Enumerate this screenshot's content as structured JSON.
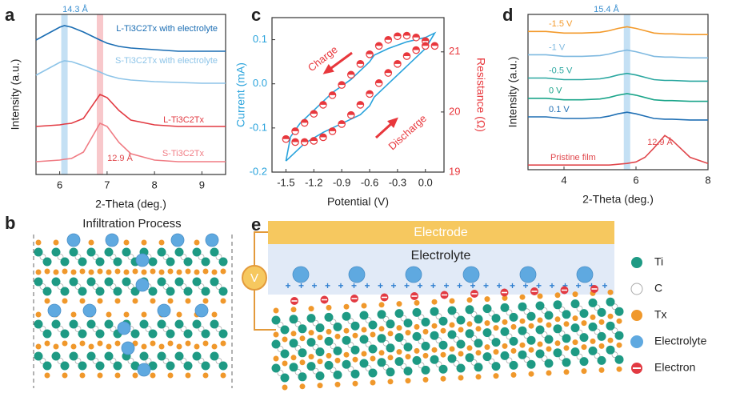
{
  "chart_data": [
    {
      "type": "line",
      "xlabel": "2-Theta (deg.)",
      "ylabel": "Intensity (a.u.)",
      "xlim": [
        5.5,
        9.5
      ],
      "xticks": [
        6,
        7,
        8,
        9
      ],
      "ylim": [
        0,
        100
      ],
      "x": [
        5.5,
        5.75,
        6.0,
        6.1,
        6.25,
        6.5,
        6.85,
        7.0,
        7.25,
        7.5,
        8,
        8.5,
        9,
        9.5
      ],
      "series": [
        {
          "name": "L-Ti3C2Tx with electrolyte",
          "color": "#1a6db3",
          "values": [
            84,
            88,
            92,
            93,
            92,
            89,
            84,
            82,
            80,
            79,
            78,
            77,
            77,
            77
          ]
        },
        {
          "name": "S-Ti3C2Tx with electrolyte",
          "color": "#8dc4e8",
          "values": [
            62,
            66,
            70,
            71,
            70.5,
            68,
            64,
            62,
            60,
            59,
            58,
            57.5,
            57,
            57
          ]
        },
        {
          "name": "L-Ti3C2Tx",
          "color": "#e23a42",
          "values": [
            30,
            30.5,
            31,
            31.5,
            32,
            35,
            50,
            48,
            40,
            34,
            31,
            30,
            30,
            30
          ]
        },
        {
          "name": "S-Ti3C2Tx",
          "color": "#f07c84",
          "values": [
            8,
            8.5,
            9,
            9.5,
            10,
            14,
            32,
            30,
            20,
            13,
            9,
            8,
            8,
            8
          ]
        }
      ],
      "bands": [
        {
          "x": 6.1,
          "color": "#c4e0f4"
        },
        {
          "x": 6.85,
          "color": "#f8c8cb"
        }
      ],
      "annotations": [
        {
          "text": "14.3 Å",
          "color": "#3a8fd0"
        },
        {
          "text": "12.9 Å",
          "color": "#e0474c"
        }
      ]
    },
    {
      "type": "loop",
      "xlabel": "Potential (V)",
      "ylabel": "Current (mA)",
      "y2label": "Resistance (Ω)",
      "xlim": [
        -1.65,
        0.2
      ],
      "xticks": [
        -1.5,
        -1.2,
        -0.9,
        -0.6,
        -0.3,
        {
          "value": 0,
          "label": "0.0"
        }
      ],
      "ylim": [
        -0.2,
        0.15
      ],
      "yticks": [
        -0.2,
        -0.1,
        {
          "value": 0,
          "label": "0.0"
        },
        0.1
      ],
      "y2lim": [
        19,
        21.57
      ],
      "y2ticks": [
        19,
        20,
        21
      ],
      "series": [
        {
          "color": "#29a3dc",
          "axis": "y",
          "x": [
            -1.5,
            -1.45,
            -1.35,
            -1.2,
            -1.0,
            -0.8,
            -0.65,
            -0.6,
            -0.55,
            -0.4,
            -0.2,
            0,
            0.1,
            0.0,
            -0.2,
            -0.4,
            -0.55,
            -0.6,
            -0.7,
            -0.9,
            -1.1,
            -1.3,
            -1.5
          ],
          "values": [
            -0.175,
            -0.12,
            -0.09,
            -0.06,
            -0.02,
            0.01,
            0.04,
            0.05,
            0.065,
            0.08,
            0.095,
            0.105,
            0.115,
            0.08,
            0.04,
            0.0,
            -0.03,
            -0.05,
            -0.07,
            -0.09,
            -0.11,
            -0.135,
            -0.175
          ]
        },
        {
          "color": "#e8373c",
          "axis": "y2",
          "marker": true,
          "x": [
            -1.5,
            -1.4,
            -1.3,
            -1.2,
            -1.1,
            -1.0,
            -0.9,
            -0.8,
            -0.7,
            -0.6,
            -0.5,
            -0.4,
            -0.3,
            -0.2,
            -0.1,
            0.0,
            0.1,
            0.0,
            -0.1,
            -0.2,
            -0.3,
            -0.4,
            -0.5,
            -0.6,
            -0.7,
            -0.8,
            -0.9,
            -1.0,
            -1.1,
            -1.2,
            -1.3,
            -1.4
          ],
          "values": [
            19.55,
            19.68,
            19.82,
            19.97,
            20.12,
            20.28,
            20.45,
            20.62,
            20.8,
            20.96,
            21.1,
            21.2,
            21.26,
            21.27,
            21.24,
            21.18,
            21.1,
            21.1,
            21.03,
            20.93,
            20.8,
            20.65,
            20.48,
            20.3,
            20.12,
            19.95,
            19.8,
            19.68,
            19.58,
            19.52,
            19.5,
            19.5
          ]
        }
      ],
      "annotations": [
        {
          "text": "Charge",
          "color": "#e8373c"
        },
        {
          "text": "Discharge",
          "color": "#e8373c"
        }
      ]
    },
    {
      "type": "line",
      "xlabel": "2-Theta (deg.)",
      "ylabel": "Intensity (a.u.)",
      "xlim": [
        3,
        8
      ],
      "xticks": [
        4,
        6,
        8
      ],
      "ylim": [
        0,
        100
      ],
      "x": [
        3,
        3.5,
        4,
        4.5,
        5,
        5.25,
        5.5,
        5.75,
        6,
        6.25,
        6.5,
        6.8,
        7,
        7.5,
        8
      ],
      "series": [
        {
          "name": "-1.5 V",
          "color": "#f39a2b",
          "values": [
            89,
            89,
            88,
            88,
            88.5,
            89.5,
            91,
            92,
            91,
            89.5,
            88,
            87.5,
            87.5,
            87,
            87
          ]
        },
        {
          "name": "-1 V",
          "color": "#7fb9e0",
          "values": [
            74,
            74,
            73,
            73,
            73.5,
            74.5,
            76,
            77,
            76,
            74.5,
            73,
            72.5,
            72.5,
            72,
            72
          ]
        },
        {
          "name": "-0.5 V",
          "color": "#2aa7a0",
          "values": [
            59,
            59,
            58,
            58,
            58.5,
            59.5,
            61,
            62,
            61,
            59.5,
            58,
            57.5,
            57.5,
            57,
            57
          ]
        },
        {
          "name": "0 V",
          "color": "#1ba58a",
          "values": [
            46,
            46,
            45,
            45,
            45.5,
            46.5,
            48,
            49,
            48,
            46.5,
            45,
            44.5,
            44.5,
            44,
            44
          ]
        },
        {
          "name": "0.1 V",
          "color": "#1f6fb4",
          "values": [
            34,
            34,
            33,
            33,
            33.5,
            34.5,
            36,
            37,
            36,
            34.5,
            33,
            32.5,
            32.5,
            32,
            32
          ]
        },
        {
          "name": "Pristine film",
          "color": "#e0474c",
          "values": [
            3,
            3,
            3,
            3,
            3,
            3,
            3.5,
            4,
            5,
            8,
            14,
            22,
            19,
            8,
            4
          ]
        }
      ],
      "bands": [
        {
          "x": 5.75,
          "color": "#c4e0f4"
        }
      ],
      "annotations": [
        {
          "text": "15.4 Å",
          "color": "#3a8fd0"
        },
        {
          "text": "12.9 Å",
          "color": "#e0474c"
        }
      ]
    }
  ],
  "panel_labels": [
    "a",
    "b",
    "c",
    "d",
    "e"
  ],
  "diagrams": {
    "b": {
      "title": "Infiltration Process"
    },
    "e": {
      "electrode": "Electrode",
      "electrolyte": "Electrolyte",
      "source": "V",
      "legend": [
        "Ti",
        "C",
        "Tx",
        "Electrolyte",
        "Electron"
      ]
    }
  }
}
